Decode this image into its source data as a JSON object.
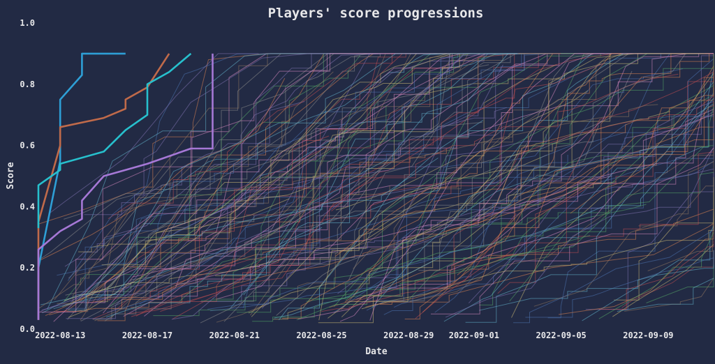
{
  "chart_data": {
    "type": "line",
    "title": "Players' score progressions",
    "xlabel": "Date",
    "ylabel": "Score",
    "x_axis": "date",
    "xlim": [
      "2022-08-12",
      "2022-09-12"
    ],
    "ylim": [
      0.0,
      1.0
    ],
    "x_ticks": [
      "2022-08-13",
      "2022-08-17",
      "2022-08-21",
      "2022-08-25",
      "2022-08-29",
      "2022-09-01",
      "2022-09-05",
      "2022-09-09"
    ],
    "y_ticks": [
      "0.0",
      "0.2",
      "0.4",
      "0.6",
      "0.8",
      "1.0"
    ],
    "grid": false,
    "legend": "none",
    "colors": {
      "background": "#222a44",
      "text": "#e8e8ea",
      "palette": [
        "#4c72b0",
        "#dd8452",
        "#55a868",
        "#c44e52",
        "#8172b3",
        "#937860",
        "#da8bc3",
        "#8c8c8c",
        "#ccb974",
        "#64b5cd"
      ]
    },
    "highlighted_series": [
      {
        "color": "#2e9fd6",
        "points": [
          [
            "2022-08-12",
            0.03
          ],
          [
            "2022-08-12",
            0.2
          ],
          [
            "2022-08-13",
            0.55
          ],
          [
            "2022-08-13",
            0.75
          ],
          [
            "2022-08-14",
            0.83
          ],
          [
            "2022-08-14",
            0.9
          ],
          [
            "2022-08-16",
            0.9
          ]
        ]
      },
      {
        "color": "#c06a4a",
        "points": [
          [
            "2022-08-12",
            0.03
          ],
          [
            "2022-08-12",
            0.35
          ],
          [
            "2022-08-13",
            0.6
          ],
          [
            "2022-08-13",
            0.66
          ],
          [
            "2022-08-15",
            0.69
          ],
          [
            "2022-08-16",
            0.72
          ],
          [
            "2022-08-16",
            0.75
          ],
          [
            "2022-08-17",
            0.79
          ],
          [
            "2022-08-18",
            0.9
          ]
        ]
      },
      {
        "color": "#27c0cd",
        "points": [
          [
            "2022-08-12",
            0.33
          ],
          [
            "2022-08-12",
            0.47
          ],
          [
            "2022-08-13",
            0.52
          ],
          [
            "2022-08-13",
            0.54
          ],
          [
            "2022-08-15",
            0.58
          ],
          [
            "2022-08-16",
            0.65
          ],
          [
            "2022-08-17",
            0.7
          ],
          [
            "2022-08-17",
            0.8
          ],
          [
            "2022-08-18",
            0.84
          ],
          [
            "2022-08-19",
            0.9
          ]
        ]
      },
      {
        "color": "#a678d6",
        "points": [
          [
            "2022-08-12",
            0.03
          ],
          [
            "2022-08-12",
            0.24
          ],
          [
            "2022-08-12",
            0.26
          ],
          [
            "2022-08-13",
            0.32
          ],
          [
            "2022-08-14",
            0.36
          ],
          [
            "2022-08-14",
            0.42
          ],
          [
            "2022-08-15",
            0.5
          ],
          [
            "2022-08-16",
            0.52
          ],
          [
            "2022-08-17",
            0.54
          ],
          [
            "2022-08-19",
            0.59
          ],
          [
            "2022-08-20",
            0.59
          ],
          [
            "2022-08-20",
            0.85
          ],
          [
            "2022-08-20",
            0.9
          ]
        ]
      }
    ]
  }
}
